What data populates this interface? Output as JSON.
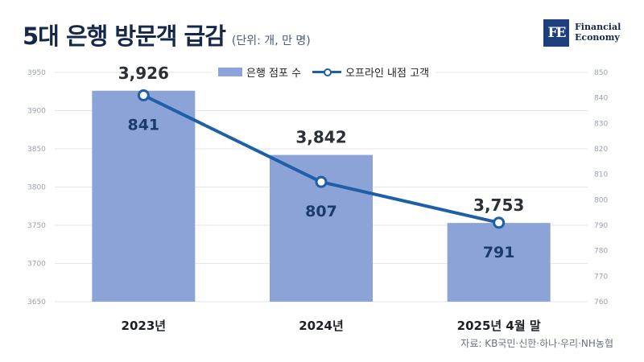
{
  "header": {
    "title": "5대 은행 방문객 급감",
    "unit": "(단위: 개, 만 명)"
  },
  "logo": {
    "mark": "FE",
    "line1": "Financial",
    "line2": "Economy"
  },
  "legend": {
    "bars": "은행 점포 수",
    "line": "오프라인 내점 고객"
  },
  "source": "자료: KB국민·신한·하나·우리·NH농협",
  "colors": {
    "bar": "#8ba3d6",
    "line": "#1f5fa8",
    "title": "#16284a"
  },
  "chart_data": {
    "type": "bar",
    "categories": [
      "2023년",
      "2024년",
      "2025년 4월 말"
    ],
    "series": [
      {
        "name": "은행 점포 수",
        "type": "bar",
        "axis": "left",
        "values": [
          3926,
          3842,
          3753
        ],
        "labels": [
          "3,926",
          "3,842",
          "3,753"
        ]
      },
      {
        "name": "오프라인 내점 고객",
        "type": "line",
        "axis": "right",
        "values": [
          841,
          807,
          791
        ],
        "labels": [
          "841",
          "807",
          "791"
        ]
      }
    ],
    "y_left": {
      "min": 3650,
      "max": 3950,
      "ticks": [
        3650,
        3700,
        3750,
        3800,
        3850,
        3900,
        3950
      ]
    },
    "y_right": {
      "min": 760,
      "max": 850,
      "ticks": [
        760,
        770,
        780,
        790,
        800,
        810,
        820,
        830,
        840,
        850
      ]
    },
    "grid": true,
    "legend_position": "top-center"
  }
}
